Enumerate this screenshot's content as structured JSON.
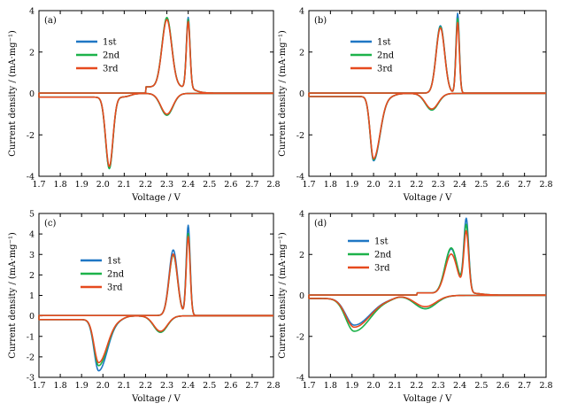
{
  "figure": {
    "xlabel": "Voltage / V",
    "ylabel": "Current density / (mA·mg⁻¹)"
  },
  "colors": {
    "1st": "#1f77c4",
    "2nd": "#1db24a",
    "3rd": "#e64a1e"
  },
  "chart_data": [
    {
      "type": "line",
      "panel_label": "(a)",
      "xlabel": "Voltage / V",
      "ylabel": "Current density / (mA·mg⁻¹)",
      "xlim": [
        1.7,
        2.8
      ],
      "ylim": [
        -4,
        4
      ],
      "xticks": [
        1.7,
        1.8,
        1.9,
        2.0,
        2.1,
        2.2,
        2.3,
        2.4,
        2.5,
        2.6,
        2.7,
        2.8
      ],
      "yticks": [
        -4,
        -2,
        0,
        2,
        4
      ],
      "legend_position": "upper-left",
      "series": [
        {
          "name": "1st",
          "anodic_peaks": [
            [
              2.3,
              3.3
            ],
            [
              2.4,
              3.4
            ]
          ],
          "cathodic_peaks": [
            [
              2.3,
              -1.05
            ],
            [
              2.03,
              -3.45
            ]
          ]
        },
        {
          "name": "2nd",
          "anodic_peaks": [
            [
              2.3,
              3.35
            ],
            [
              2.4,
              3.3
            ]
          ],
          "cathodic_peaks": [
            [
              2.3,
              -1.05
            ],
            [
              2.03,
              -3.45
            ]
          ]
        },
        {
          "name": "3rd",
          "anodic_peaks": [
            [
              2.3,
              3.25
            ],
            [
              2.4,
              3.2
            ]
          ],
          "cathodic_peaks": [
            [
              2.3,
              -1.0
            ],
            [
              2.03,
              -3.35
            ]
          ]
        }
      ]
    },
    {
      "type": "line",
      "panel_label": "(b)",
      "xlabel": "Voltage / V",
      "ylabel": "Current density / (mA·mg⁻¹)",
      "xlim": [
        1.7,
        2.8
      ],
      "ylim": [
        -4,
        4
      ],
      "xticks": [
        1.7,
        1.8,
        1.9,
        2.0,
        2.1,
        2.2,
        2.3,
        2.4,
        2.5,
        2.6,
        2.7,
        2.8
      ],
      "yticks": [
        -4,
        -2,
        0,
        2,
        4
      ],
      "legend_position": "upper-left",
      "series": [
        {
          "name": "1st",
          "anodic_peaks": [
            [
              2.31,
              3.25
            ],
            [
              2.39,
              3.85
            ]
          ],
          "cathodic_peaks": [
            [
              2.27,
              -0.8
            ],
            [
              2.0,
              -3.1
            ]
          ]
        },
        {
          "name": "2nd",
          "anodic_peaks": [
            [
              2.31,
              3.2
            ],
            [
              2.39,
              3.6
            ]
          ],
          "cathodic_peaks": [
            [
              2.27,
              -0.8
            ],
            [
              2.0,
              -3.05
            ]
          ]
        },
        {
          "name": "3rd",
          "anodic_peaks": [
            [
              2.31,
              3.15
            ],
            [
              2.39,
              3.4
            ]
          ],
          "cathodic_peaks": [
            [
              2.27,
              -0.75
            ],
            [
              2.0,
              -3.0
            ]
          ]
        }
      ]
    },
    {
      "type": "line",
      "panel_label": "(c)",
      "xlabel": "Voltage / V",
      "ylabel": "Current density / (mA·mg⁻¹)",
      "xlim": [
        1.7,
        2.8
      ],
      "ylim": [
        -3,
        5
      ],
      "xticks": [
        1.7,
        1.8,
        1.9,
        2.0,
        2.1,
        2.2,
        2.3,
        2.4,
        2.5,
        2.6,
        2.7,
        2.8
      ],
      "yticks": [
        -3,
        -2,
        -1,
        0,
        1,
        2,
        3,
        4,
        5
      ],
      "legend_position": "upper-left",
      "series": [
        {
          "name": "1st",
          "anodic_peaks": [
            [
              2.33,
              3.2
            ],
            [
              2.4,
              4.4
            ]
          ],
          "cathodic_peaks": [
            [
              2.27,
              -0.8
            ],
            [
              1.98,
              -2.5
            ]
          ]
        },
        {
          "name": "2nd",
          "anodic_peaks": [
            [
              2.33,
              2.95
            ],
            [
              2.4,
              4.0
            ]
          ],
          "cathodic_peaks": [
            [
              2.27,
              -0.8
            ],
            [
              1.98,
              -2.25
            ]
          ]
        },
        {
          "name": "3rd",
          "anodic_peaks": [
            [
              2.33,
              3.0
            ],
            [
              2.4,
              3.85
            ]
          ],
          "cathodic_peaks": [
            [
              2.27,
              -0.75
            ],
            [
              1.98,
              -2.1
            ]
          ]
        }
      ]
    },
    {
      "type": "line",
      "panel_label": "(d)",
      "xlabel": "Voltage / V",
      "ylabel": "Current density / (mA·mg⁻¹)",
      "xlim": [
        1.7,
        2.8
      ],
      "ylim": [
        -4,
        4
      ],
      "xticks": [
        1.7,
        1.8,
        1.9,
        2.0,
        2.1,
        2.2,
        2.3,
        2.4,
        2.5,
        2.6,
        2.7,
        2.8
      ],
      "yticks": [
        -4,
        -2,
        0,
        2,
        4
      ],
      "legend_position": "upper-left",
      "series": [
        {
          "name": "1st",
          "anodic_peaks": [
            [
              2.36,
              2.15
            ],
            [
              2.43,
              3.55
            ]
          ],
          "cathodic_peaks": [
            [
              2.24,
              -0.65
            ],
            [
              1.91,
              -1.3
            ]
          ]
        },
        {
          "name": "2nd",
          "anodic_peaks": [
            [
              2.36,
              2.2
            ],
            [
              2.43,
              3.25
            ]
          ],
          "cathodic_peaks": [
            [
              2.24,
              -0.65
            ],
            [
              1.91,
              -1.6
            ]
          ]
        },
        {
          "name": "3rd",
          "anodic_peaks": [
            [
              2.36,
              1.9
            ],
            [
              2.43,
              2.95
            ]
          ],
          "cathodic_peaks": [
            [
              2.24,
              -0.55
            ],
            [
              1.91,
              -1.4
            ]
          ]
        }
      ]
    }
  ]
}
